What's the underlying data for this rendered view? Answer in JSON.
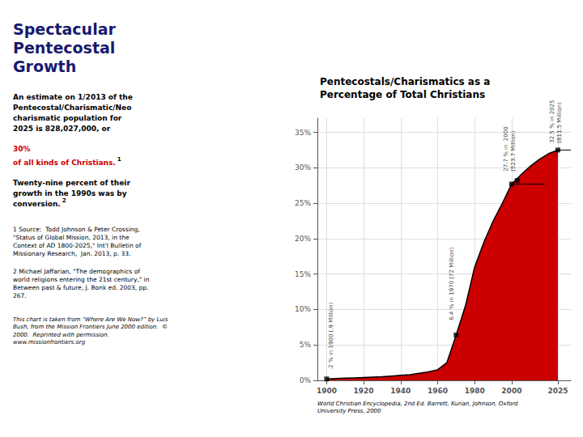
{
  "chart_data": {
    "type": "area",
    "title": "Pentecostals/Charismatics as a\nPercentage of Total Christians",
    "xlim": [
      1895,
      2032
    ],
    "ylim": [
      0,
      37
    ],
    "xticks": [
      1900,
      1920,
      1940,
      1960,
      1980,
      2000,
      2025
    ],
    "yticks": [
      {
        "value": 0,
        "label": "0%"
      },
      {
        "value": 5,
        "label": "5%"
      },
      {
        "value": 10,
        "label": "10%"
      },
      {
        "value": 15,
        "label": "15%"
      },
      {
        "value": 20,
        "label": "20%"
      },
      {
        "value": 25,
        "label": "25%"
      },
      {
        "value": 30,
        "label": "30%"
      },
      {
        "value": 35,
        "label": "35%"
      }
    ],
    "grid": true,
    "series": [
      {
        "type": "area",
        "color": "#cc0000",
        "x": [
          1900,
          1905,
          1910,
          1915,
          1920,
          1925,
          1930,
          1935,
          1940,
          1945,
          1950,
          1955,
          1960,
          1965,
          1970,
          1975,
          1980,
          1985,
          1990,
          1995,
          2000,
          2005,
          2010,
          2015,
          2020,
          2025
        ],
        "values": [
          0.2,
          0.25,
          0.3,
          0.35,
          0.4,
          0.45,
          0.5,
          0.6,
          0.7,
          0.8,
          1.0,
          1.2,
          1.5,
          2.5,
          6.4,
          10.5,
          16.0,
          19.5,
          22.5,
          25.0,
          27.7,
          29.0,
          30.2,
          31.2,
          32.0,
          32.5
        ]
      },
      {
        "type": "line",
        "color": "#000000",
        "x": [
          1900,
          1905,
          1910,
          1915,
          1920,
          1925,
          1930,
          1935,
          1940,
          1945,
          1950,
          1955,
          1960,
          1965,
          1970,
          1975,
          1980,
          1985,
          1990,
          1995,
          2000,
          2005,
          2010,
          2015,
          2020,
          2025
        ],
        "values": [
          0.2,
          0.25,
          0.3,
          0.35,
          0.4,
          0.45,
          0.5,
          0.6,
          0.7,
          0.8,
          1.0,
          1.2,
          1.5,
          2.5,
          6.4,
          10.5,
          16.0,
          19.5,
          22.5,
          25.0,
          27.7,
          29.0,
          30.2,
          31.2,
          32.0,
          32.5
        ]
      },
      {
        "type": "line",
        "color": "#000000",
        "x": [
          2000,
          2018
        ],
        "values": [
          27.7,
          27.7
        ]
      },
      {
        "type": "line",
        "color": "#000000",
        "x": [
          2025,
          2032
        ],
        "values": [
          32.5,
          32.5
        ]
      },
      {
        "type": "scatter",
        "marker": "square",
        "color": "#000000",
        "x": [
          1900,
          1970,
          2000,
          2003,
          2025
        ],
        "values": [
          0.2,
          6.4,
          27.7,
          28.2,
          32.5
        ]
      }
    ],
    "annotations": [
      {
        "text": ".2 % in 1900 (.9 Million)",
        "x": 1902.5,
        "y": 1.5
      },
      {
        "text": "6.4 % in 1970 (72 Million)",
        "x": 1967.5,
        "y": 8.5
      },
      {
        "text": "27.7 % in  2000",
        "x": 1997,
        "y": 29.5
      },
      {
        "text": "(523.7 Million)",
        "x": 2001,
        "y": 29.5
      },
      {
        "text": "32.5 % in 2025",
        "x": 2022,
        "y": 33.5
      },
      {
        "text": "(811.5 Million)",
        "x": 2026,
        "y": 33.5
      }
    ],
    "source_text": "World Christian Encyclopedia, 2nd Ed. Barrett, Kurian, Johnson, Oxford\nUniversity Press, 2000",
    "side_panel": {
      "title": "Spectacular\nPentecostal\nGrowth",
      "color": "#1a1a6e",
      "body": [
        {
          "text": "An estimate on 1/2013 of the\nPentecostal/Charismatic/Neo\ncharismatic population for\n2025 is 828,027,000, or",
          "color": "#000000"
        },
        {
          "text": "30%",
          "color": "#cc0000"
        },
        {
          "text": "of all kinds of Christians.",
          "color": "#cc0000",
          "note": {
            "text": "1",
            "color": "#000000"
          }
        },
        {
          "text": "Twenty-nine percent of their\ngrowth in the 1990s was by\nconversion.",
          "color": "#000000",
          "note": {
            "text": "2",
            "color": "#000000"
          }
        }
      ],
      "footnotes": [
        {
          "text": "1 Source:  Todd Johnson & Peter Crossing,\n\"Status of Global Mission, 2013, in the\nContext of AD 1800-2025,\" Int'l Bulletin of\nMissionary Research,  Jan. 2013, p. 33.",
          "color": "#000000"
        },
        {
          "text": "2 Michael Jaffarian, \"The demographics of\nworld religions entering the 21st century,\" in\nBetween past & future, J. Bonk ed. 2003, pp.\n267.",
          "color": "#000000"
        }
      ],
      "credit": {
        "text": "This chart is taken from “Where Are We Now?” by Luis\nBush, from the Mission Frontiers June 2000 edition.  ©\n2000.  Reprinted with permission.\nwww.missionfrontiers.org",
        "color": "#000000"
      }
    }
  }
}
